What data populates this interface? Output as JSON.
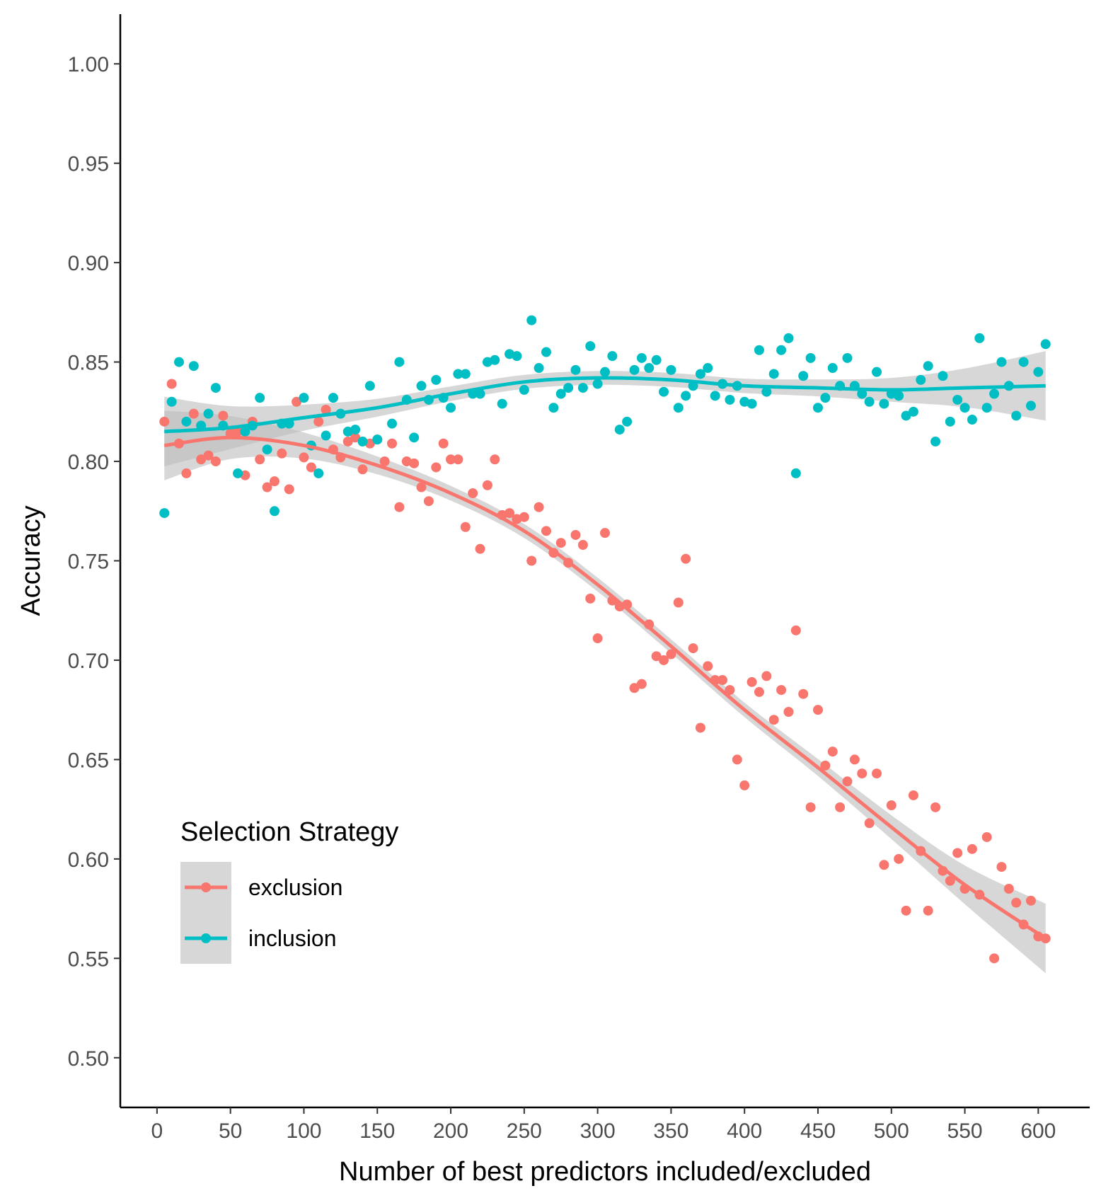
{
  "chart_data": {
    "type": "scatter",
    "xlabel": "Number of best predictors included/excluded",
    "ylabel": "Accuracy",
    "xlim": [
      -25,
      635
    ],
    "ylim": [
      0.475,
      1.025
    ],
    "x_ticks": [
      "0",
      "50",
      "100",
      "150",
      "200",
      "250",
      "300",
      "350",
      "400",
      "450",
      "500",
      "550",
      "600"
    ],
    "y_ticks": [
      "0.50",
      "0.55",
      "0.60",
      "0.65",
      "0.70",
      "0.75",
      "0.80",
      "0.85",
      "0.90",
      "0.95",
      "1.00"
    ],
    "grid": false,
    "legend": {
      "title": "Selection Strategy",
      "placement": "bottom-left",
      "items": [
        "exclusion",
        "inclusion"
      ]
    },
    "colors": {
      "exclusion": "#F8766D",
      "inclusion": "#00BFC4",
      "ribbon": "#bdbdbd"
    },
    "smooth": true,
    "series": [
      {
        "name": "exclusion",
        "points": [
          [
            5,
            0.82
          ],
          [
            10,
            0.839
          ],
          [
            15,
            0.809
          ],
          [
            20,
            0.794
          ],
          [
            25,
            0.824
          ],
          [
            30,
            0.801
          ],
          [
            35,
            0.803
          ],
          [
            40,
            0.8
          ],
          [
            45,
            0.823
          ],
          [
            50,
            0.814
          ],
          [
            55,
            0.815
          ],
          [
            60,
            0.793
          ],
          [
            65,
            0.82
          ],
          [
            70,
            0.801
          ],
          [
            75,
            0.787
          ],
          [
            80,
            0.79
          ],
          [
            85,
            0.804
          ],
          [
            90,
            0.786
          ],
          [
            95,
            0.83
          ],
          [
            100,
            0.802
          ],
          [
            105,
            0.797
          ],
          [
            110,
            0.82
          ],
          [
            115,
            0.826
          ],
          [
            120,
            0.806
          ],
          [
            125,
            0.802
          ],
          [
            130,
            0.81
          ],
          [
            135,
            0.812
          ],
          [
            140,
            0.796
          ],
          [
            145,
            0.809
          ],
          [
            150,
            0.811
          ],
          [
            155,
            0.8
          ],
          [
            160,
            0.809
          ],
          [
            165,
            0.777
          ],
          [
            170,
            0.8
          ],
          [
            175,
            0.799
          ],
          [
            180,
            0.787
          ],
          [
            185,
            0.78
          ],
          [
            190,
            0.797
          ],
          [
            195,
            0.809
          ],
          [
            200,
            0.801
          ],
          [
            205,
            0.801
          ],
          [
            210,
            0.767
          ],
          [
            215,
            0.784
          ],
          [
            220,
            0.756
          ],
          [
            225,
            0.788
          ],
          [
            230,
            0.801
          ],
          [
            235,
            0.773
          ],
          [
            240,
            0.774
          ],
          [
            245,
            0.771
          ],
          [
            250,
            0.772
          ],
          [
            255,
            0.75
          ],
          [
            260,
            0.777
          ],
          [
            265,
            0.765
          ],
          [
            270,
            0.754
          ],
          [
            275,
            0.759
          ],
          [
            280,
            0.749
          ],
          [
            285,
            0.763
          ],
          [
            290,
            0.758
          ],
          [
            295,
            0.731
          ],
          [
            300,
            0.711
          ],
          [
            305,
            0.764
          ],
          [
            310,
            0.73
          ],
          [
            315,
            0.727
          ],
          [
            320,
            0.728
          ],
          [
            325,
            0.686
          ],
          [
            330,
            0.688
          ],
          [
            335,
            0.718
          ],
          [
            340,
            0.702
          ],
          [
            345,
            0.7
          ],
          [
            350,
            0.703
          ],
          [
            355,
            0.729
          ],
          [
            360,
            0.751
          ],
          [
            365,
            0.706
          ],
          [
            370,
            0.666
          ],
          [
            375,
            0.697
          ],
          [
            380,
            0.69
          ],
          [
            385,
            0.69
          ],
          [
            390,
            0.685
          ],
          [
            395,
            0.65
          ],
          [
            400,
            0.637
          ],
          [
            405,
            0.689
          ],
          [
            410,
            0.684
          ],
          [
            415,
            0.692
          ],
          [
            420,
            0.67
          ],
          [
            425,
            0.685
          ],
          [
            430,
            0.674
          ],
          [
            435,
            0.715
          ],
          [
            440,
            0.683
          ],
          [
            445,
            0.626
          ],
          [
            450,
            0.675
          ],
          [
            455,
            0.647
          ],
          [
            460,
            0.654
          ],
          [
            465,
            0.626
          ],
          [
            470,
            0.639
          ],
          [
            475,
            0.65
          ],
          [
            480,
            0.643
          ],
          [
            485,
            0.618
          ],
          [
            490,
            0.643
          ],
          [
            495,
            0.597
          ],
          [
            500,
            0.627
          ],
          [
            505,
            0.6
          ],
          [
            510,
            0.574
          ],
          [
            515,
            0.632
          ],
          [
            520,
            0.604
          ],
          [
            525,
            0.574
          ],
          [
            530,
            0.626
          ],
          [
            535,
            0.594
          ],
          [
            540,
            0.589
          ],
          [
            545,
            0.603
          ],
          [
            550,
            0.585
          ],
          [
            555,
            0.605
          ],
          [
            560,
            0.582
          ],
          [
            565,
            0.611
          ],
          [
            570,
            0.55
          ],
          [
            575,
            0.596
          ],
          [
            580,
            0.585
          ],
          [
            585,
            0.578
          ],
          [
            590,
            0.567
          ],
          [
            595,
            0.579
          ],
          [
            600,
            0.561
          ],
          [
            605,
            0.56
          ]
        ],
        "smooth": [
          [
            5,
            0.808
          ],
          [
            50,
            0.812
          ],
          [
            100,
            0.808
          ],
          [
            150,
            0.798
          ],
          [
            200,
            0.784
          ],
          [
            250,
            0.765
          ],
          [
            300,
            0.738
          ],
          [
            350,
            0.707
          ],
          [
            400,
            0.675
          ],
          [
            450,
            0.646
          ],
          [
            500,
            0.616
          ],
          [
            550,
            0.587
          ],
          [
            605,
            0.56
          ]
        ]
      },
      {
        "name": "inclusion",
        "points": [
          [
            5,
            0.774
          ],
          [
            10,
            0.83
          ],
          [
            15,
            0.85
          ],
          [
            20,
            0.82
          ],
          [
            25,
            0.848
          ],
          [
            30,
            0.818
          ],
          [
            35,
            0.824
          ],
          [
            40,
            0.837
          ],
          [
            45,
            0.818
          ],
          [
            55,
            0.794
          ],
          [
            60,
            0.815
          ],
          [
            65,
            0.818
          ],
          [
            70,
            0.832
          ],
          [
            75,
            0.806
          ],
          [
            80,
            0.775
          ],
          [
            85,
            0.819
          ],
          [
            90,
            0.819
          ],
          [
            100,
            0.832
          ],
          [
            105,
            0.808
          ],
          [
            110,
            0.794
          ],
          [
            115,
            0.813
          ],
          [
            120,
            0.832
          ],
          [
            125,
            0.824
          ],
          [
            130,
            0.815
          ],
          [
            135,
            0.816
          ],
          [
            140,
            0.81
          ],
          [
            145,
            0.838
          ],
          [
            150,
            0.811
          ],
          [
            160,
            0.819
          ],
          [
            165,
            0.85
          ],
          [
            170,
            0.831
          ],
          [
            175,
            0.812
          ],
          [
            180,
            0.838
          ],
          [
            185,
            0.831
          ],
          [
            190,
            0.841
          ],
          [
            195,
            0.832
          ],
          [
            200,
            0.827
          ],
          [
            205,
            0.844
          ],
          [
            210,
            0.844
          ],
          [
            215,
            0.834
          ],
          [
            220,
            0.834
          ],
          [
            225,
            0.85
          ],
          [
            230,
            0.851
          ],
          [
            235,
            0.829
          ],
          [
            240,
            0.854
          ],
          [
            245,
            0.853
          ],
          [
            250,
            0.836
          ],
          [
            255,
            0.871
          ],
          [
            260,
            0.847
          ],
          [
            265,
            0.855
          ],
          [
            270,
            0.827
          ],
          [
            275,
            0.834
          ],
          [
            280,
            0.837
          ],
          [
            285,
            0.846
          ],
          [
            290,
            0.837
          ],
          [
            295,
            0.858
          ],
          [
            300,
            0.839
          ],
          [
            305,
            0.845
          ],
          [
            310,
            0.853
          ],
          [
            315,
            0.816
          ],
          [
            320,
            0.82
          ],
          [
            325,
            0.846
          ],
          [
            330,
            0.852
          ],
          [
            335,
            0.847
          ],
          [
            340,
            0.851
          ],
          [
            345,
            0.835
          ],
          [
            350,
            0.846
          ],
          [
            355,
            0.827
          ],
          [
            360,
            0.833
          ],
          [
            365,
            0.838
          ],
          [
            370,
            0.844
          ],
          [
            375,
            0.847
          ],
          [
            380,
            0.833
          ],
          [
            385,
            0.839
          ],
          [
            390,
            0.831
          ],
          [
            395,
            0.838
          ],
          [
            400,
            0.83
          ],
          [
            405,
            0.829
          ],
          [
            410,
            0.856
          ],
          [
            415,
            0.835
          ],
          [
            420,
            0.844
          ],
          [
            425,
            0.856
          ],
          [
            430,
            0.862
          ],
          [
            435,
            0.794
          ],
          [
            440,
            0.843
          ],
          [
            445,
            0.852
          ],
          [
            450,
            0.827
          ],
          [
            455,
            0.832
          ],
          [
            460,
            0.847
          ],
          [
            465,
            0.838
          ],
          [
            470,
            0.852
          ],
          [
            475,
            0.838
          ],
          [
            480,
            0.834
          ],
          [
            485,
            0.83
          ],
          [
            490,
            0.845
          ],
          [
            495,
            0.829
          ],
          [
            500,
            0.834
          ],
          [
            505,
            0.833
          ],
          [
            510,
            0.823
          ],
          [
            515,
            0.825
          ],
          [
            520,
            0.841
          ],
          [
            525,
            0.848
          ],
          [
            530,
            0.81
          ],
          [
            535,
            0.843
          ],
          [
            540,
            0.82
          ],
          [
            545,
            0.831
          ],
          [
            550,
            0.827
          ],
          [
            555,
            0.821
          ],
          [
            560,
            0.862
          ],
          [
            565,
            0.827
          ],
          [
            570,
            0.834
          ],
          [
            575,
            0.85
          ],
          [
            580,
            0.838
          ],
          [
            585,
            0.823
          ],
          [
            590,
            0.85
          ],
          [
            595,
            0.828
          ],
          [
            600,
            0.845
          ],
          [
            605,
            0.859
          ]
        ],
        "smooth": [
          [
            5,
            0.815
          ],
          [
            50,
            0.817
          ],
          [
            100,
            0.822
          ],
          [
            150,
            0.827
          ],
          [
            200,
            0.834
          ],
          [
            250,
            0.84
          ],
          [
            300,
            0.842
          ],
          [
            350,
            0.841
          ],
          [
            400,
            0.838
          ],
          [
            450,
            0.837
          ],
          [
            500,
            0.836
          ],
          [
            550,
            0.837
          ],
          [
            605,
            0.838
          ]
        ]
      }
    ]
  }
}
